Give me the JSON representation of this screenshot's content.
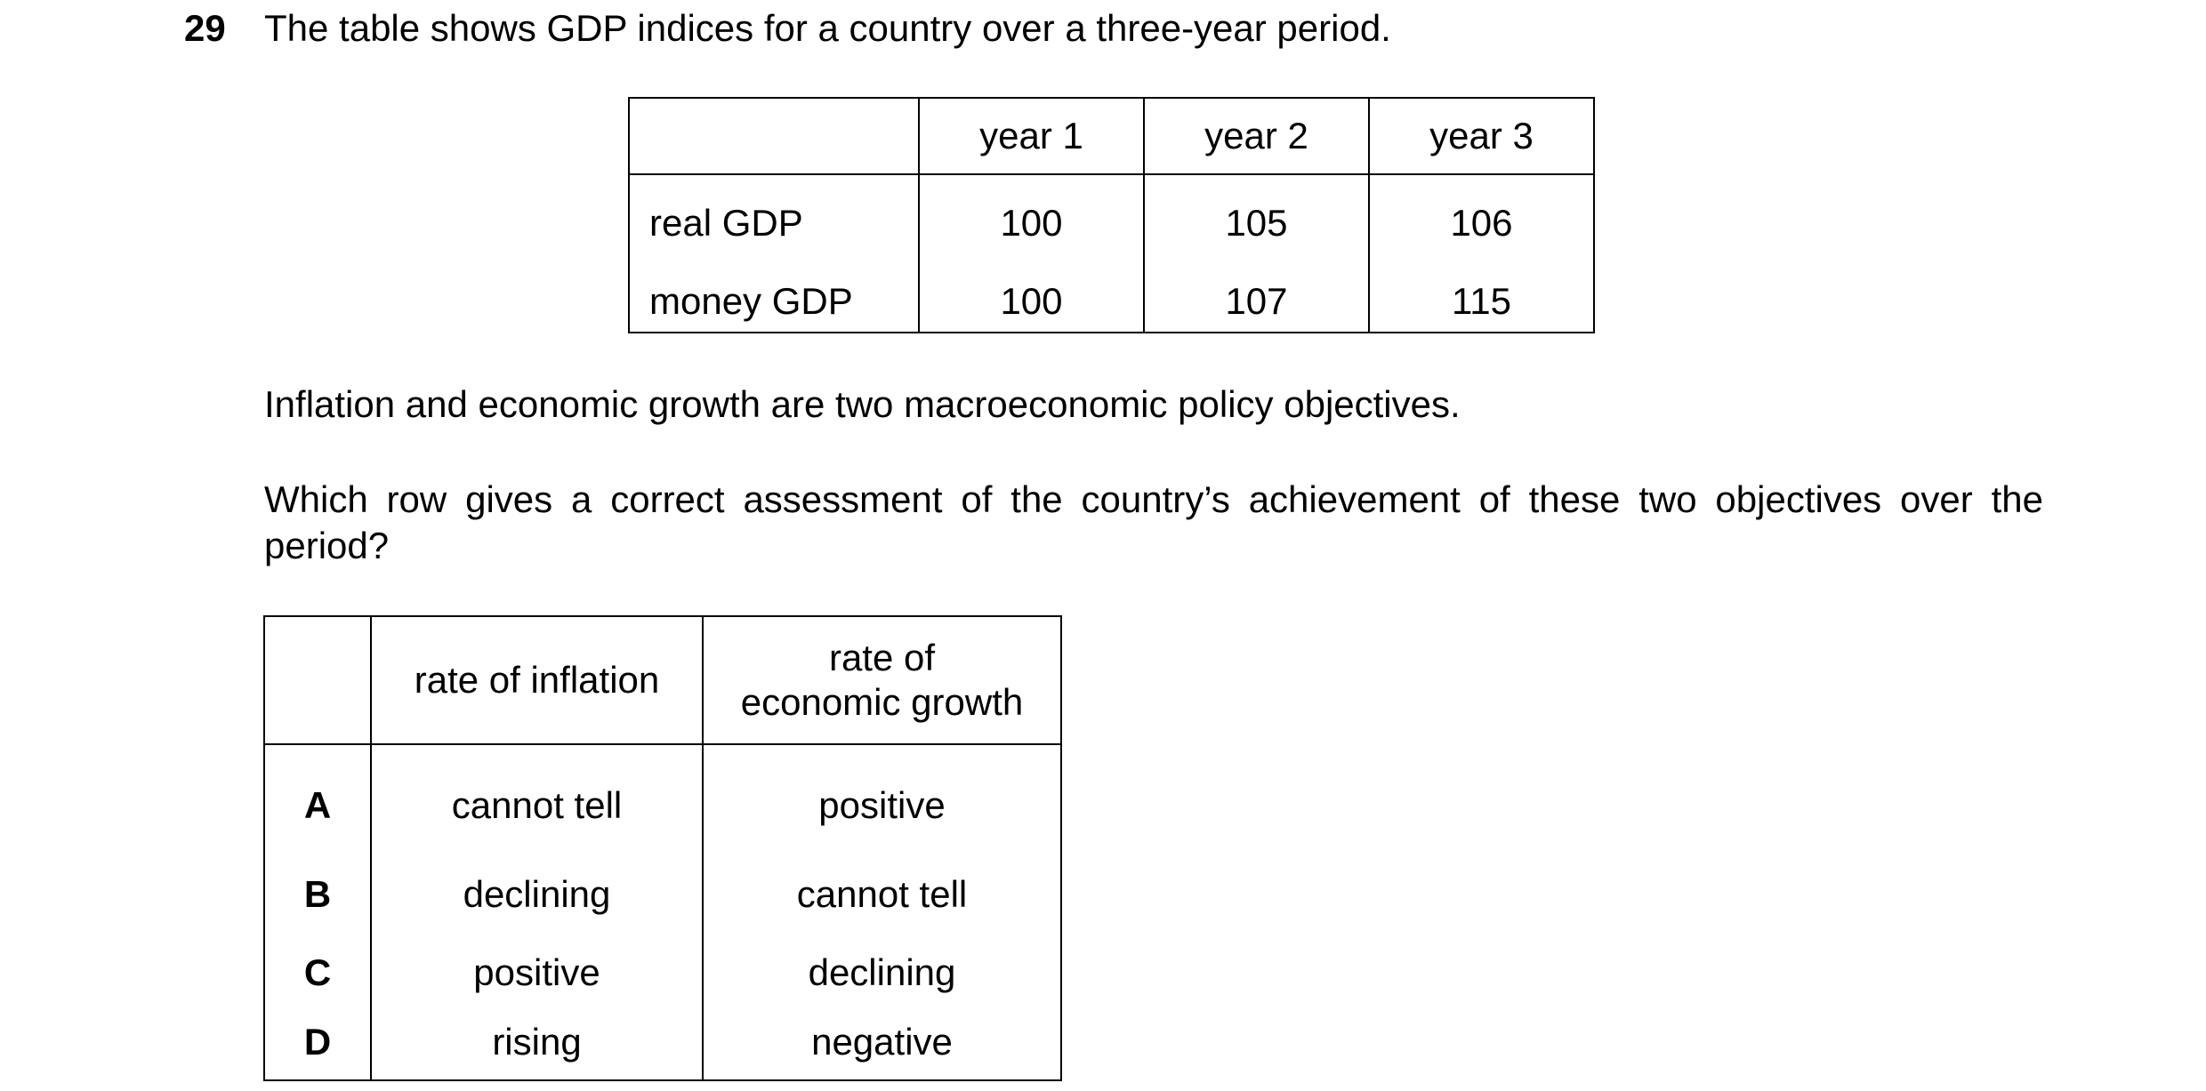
{
  "question": {
    "number": "29",
    "intro": "The table shows GDP indices for a country over a three-year period.",
    "statement": "Inflation and economic growth are two macroeconomic policy objectives.",
    "prompt": "Which row gives a correct assessment of the country’s achievement of these two objectives over the period?"
  },
  "gdp_table": {
    "headers": [
      "",
      "year 1",
      "year 2",
      "year 3"
    ],
    "rows": [
      {
        "label": "real GDP",
        "values": [
          "100",
          "105",
          "106"
        ]
      },
      {
        "label": "money GDP",
        "values": [
          "100",
          "107",
          "115"
        ]
      }
    ]
  },
  "options_table": {
    "headers": {
      "blank": "",
      "inflation": "rate of inflation",
      "growth_line1": "rate of",
      "growth_line2": "economic growth"
    },
    "rows": [
      {
        "letter": "A",
        "inflation": "cannot tell",
        "growth": "positive"
      },
      {
        "letter": "B",
        "inflation": "declining",
        "growth": "cannot tell"
      },
      {
        "letter": "C",
        "inflation": "positive",
        "growth": "declining"
      },
      {
        "letter": "D",
        "inflation": "rising",
        "growth": "negative"
      }
    ]
  }
}
